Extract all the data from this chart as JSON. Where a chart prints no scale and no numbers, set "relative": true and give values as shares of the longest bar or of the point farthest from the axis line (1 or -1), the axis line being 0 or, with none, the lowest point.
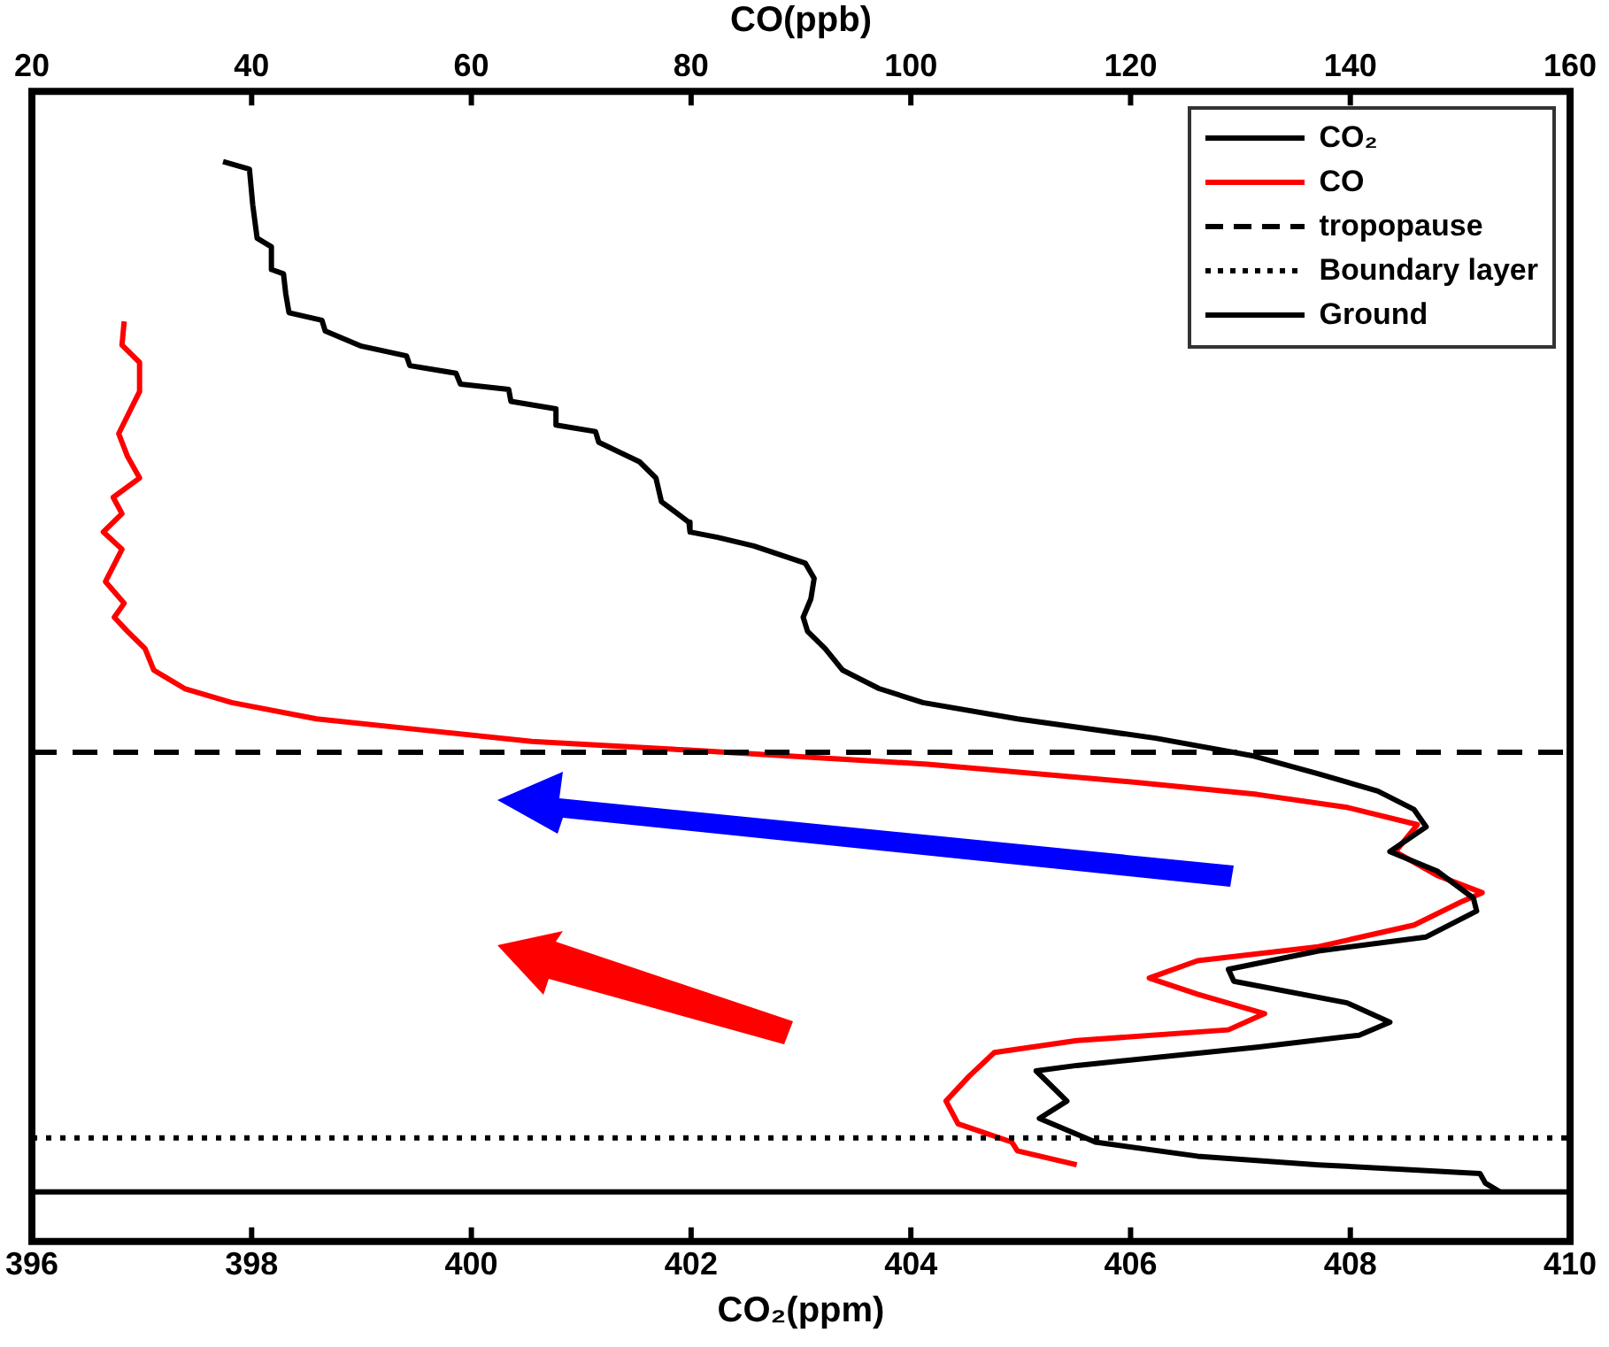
{
  "chart_data": {
    "type": "line",
    "xlabel": "CO₂(ppm)",
    "x2label": "CO(ppb)",
    "relative": true,
    "xlim": [
      396,
      410
    ],
    "xticks": [
      396,
      398,
      400,
      402,
      404,
      406,
      408,
      410
    ],
    "x2lim": [
      20,
      160
    ],
    "x2ticks": [
      20,
      40,
      60,
      80,
      100,
      120,
      140,
      160
    ],
    "tick_labels": "x",
    "grid": false,
    "legend": "top right",
    "marker": "none",
    "line_style": "solid",
    "series": [
      {
        "name": "CO₂",
        "color": "#000000",
        "x": [
          397.74,
          397.98,
          398.01,
          398.05,
          398.18,
          398.18,
          398.29,
          398.31,
          398.34,
          398.64,
          398.67,
          399.0,
          399.41,
          399.44,
          399.86,
          399.9,
          400.34,
          400.36,
          400.77,
          400.77,
          401.13,
          401.16,
          401.53,
          401.68,
          401.73,
          401.98,
          401.99,
          402.24,
          402.57,
          403.04,
          403.12,
          403.09,
          403.02,
          403.06,
          403.22,
          403.38,
          403.71,
          404.11,
          404.97,
          406.23,
          407.1,
          407.71,
          408.25,
          408.58,
          408.69,
          408.36,
          408.79,
          409.12,
          409.15,
          408.69,
          407.71,
          406.89,
          406.94,
          407.97,
          408.36,
          408.08,
          407.15,
          405.51,
          405.14,
          405.42,
          405.17,
          405.68,
          406.61,
          407.71,
          409.18,
          409.23,
          409.36
        ],
        "values": [
          1.0,
          0.993,
          0.96,
          0.929,
          0.921,
          0.9,
          0.896,
          0.878,
          0.86,
          0.853,
          0.843,
          0.829,
          0.82,
          0.811,
          0.804,
          0.794,
          0.789,
          0.778,
          0.771,
          0.756,
          0.75,
          0.74,
          0.722,
          0.707,
          0.685,
          0.666,
          0.657,
          0.652,
          0.644,
          0.628,
          0.614,
          0.595,
          0.578,
          0.565,
          0.549,
          0.529,
          0.512,
          0.499,
          0.484,
          0.466,
          0.45,
          0.433,
          0.417,
          0.4,
          0.384,
          0.361,
          0.343,
          0.318,
          0.306,
          0.282,
          0.269,
          0.252,
          0.241,
          0.221,
          0.203,
          0.191,
          0.18,
          0.163,
          0.158,
          0.13,
          0.114,
          0.092,
          0.079,
          0.071,
          0.063,
          0.054,
          0.046
        ]
      },
      {
        "name": "CO",
        "color": "#ff0000",
        "axis": "x2",
        "x": [
          28.4,
          28.2,
          29.8,
          29.8,
          27.9,
          28.7,
          29.8,
          27.4,
          28.2,
          26.5,
          28.2,
          26.7,
          28.4,
          27.5,
          28.7,
          30.3,
          31.1,
          33.9,
          38.2,
          45.9,
          55.2,
          65.5,
          79.8,
          101.5,
          120.7,
          131.5,
          139.7,
          146.1,
          144.1,
          147.9,
          152.0,
          150.2,
          145.8,
          137.1,
          126.1,
          121.7,
          126.1,
          132.2,
          128.9,
          115.1,
          107.6,
          105.3,
          103.2,
          104.3,
          109.2,
          109.7,
          115.1
        ],
        "values": [
          0.852,
          0.83,
          0.814,
          0.787,
          0.748,
          0.727,
          0.707,
          0.689,
          0.674,
          0.657,
          0.641,
          0.611,
          0.591,
          0.578,
          0.565,
          0.549,
          0.529,
          0.512,
          0.499,
          0.484,
          0.474,
          0.463,
          0.455,
          0.442,
          0.425,
          0.414,
          0.402,
          0.386,
          0.361,
          0.339,
          0.323,
          0.315,
          0.293,
          0.273,
          0.26,
          0.244,
          0.229,
          0.211,
          0.196,
          0.186,
          0.175,
          0.153,
          0.13,
          0.109,
          0.092,
          0.084,
          0.071
        ]
      }
    ],
    "ref_lines": [
      {
        "axis": "y",
        "value": 0.453,
        "label": "tropopause",
        "color": "#000000",
        "line_style": "dashed"
      },
      {
        "axis": "y",
        "value": 0.096,
        "label": "Boundary layer",
        "color": "#000000",
        "line_style": "dotted"
      },
      {
        "axis": "y",
        "value": 0.046,
        "label": "Ground",
        "color": "#000000",
        "line_style": "solid"
      }
    ]
  }
}
